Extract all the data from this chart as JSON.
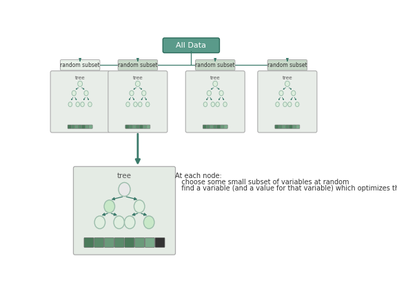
{
  "title": "All Data",
  "title_box_color": "#5a9a8a",
  "title_text_color": "white",
  "bg_color": "#ffffff",
  "subset_label": "random subset",
  "tree_label": "tree",
  "node_color_outer": "#9abcaa",
  "node_color_inner": "#ddeedd",
  "node_glow": "#c8e8c8",
  "leaf_colors": [
    "#4a7a5a",
    "#5a8a6a",
    "#6a9a7a",
    "#5a8a6a",
    "#4a7a5a",
    "#6a9a7a",
    "#7aaa8a",
    "#333333"
  ],
  "box_bg_small": "#e8ede8",
  "box_bg_large": "#e4ebe4",
  "box_edge": "#aaaaaa",
  "connector_color": "#3a7a6a",
  "arrow_color": "#3a7a6a",
  "subset_box_bg": "#c8d8c8",
  "subset_box_bg1": "#e8f0e8",
  "annotation_line1": "At each node:",
  "annotation_line2": "   choose some small subset of variables at random",
  "annotation_line3": "   find a variable (and a value for that variable) which optimizes the spl",
  "annotation_fontsize": 7.0
}
